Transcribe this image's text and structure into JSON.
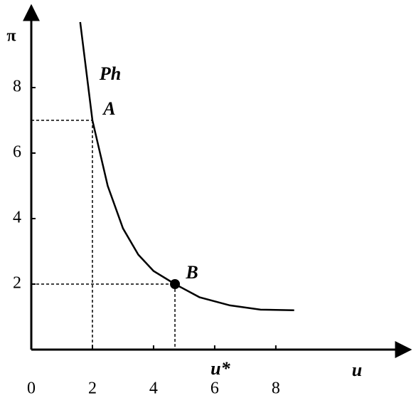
{
  "chart_data": {
    "type": "line",
    "x_label": "u",
    "y_label": "π",
    "x": [
      1.6,
      1.8,
      2.0,
      2.5,
      3.0,
      3.5,
      4.0,
      4.7,
      5.5,
      6.5,
      7.5,
      8.6
    ],
    "series": [
      {
        "name": "Ph",
        "color": "#000000",
        "values": [
          10.0,
          8.5,
          7.0,
          5.0,
          3.7,
          2.9,
          2.4,
          2.0,
          1.6,
          1.35,
          1.22,
          1.2
        ]
      }
    ],
    "points": [
      {
        "label": "A",
        "x": 2.0,
        "y": 7.0,
        "dot": false
      },
      {
        "label": "B",
        "x": 4.7,
        "y": 2.0,
        "dot": true
      }
    ],
    "annotations": [
      {
        "text": "u*",
        "x": 6
      }
    ],
    "xlim": [
      0,
      12.4
    ],
    "ylim": [
      0,
      10.5
    ],
    "xticks": [
      0,
      2,
      4,
      6,
      8
    ],
    "yticks": [
      2,
      4,
      6,
      8
    ]
  }
}
